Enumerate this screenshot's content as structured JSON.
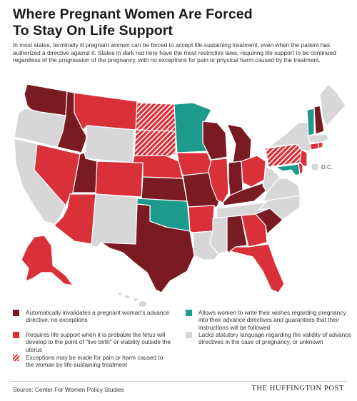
{
  "title_line1": "Where Pregnant Women Are Forced",
  "title_line2": "To Stay On Life Support",
  "intro": "In most states, terminally ill pregnant women can be forced to accept life-sustaining treatment, even when the patient has authorized a directive against it. States in dark red here have the most restrictive laws, requiring life support to be continued regardless of the progression of the pregnancy, with no exceptions for pain or physical harm caused by the treatment.",
  "dc_label": "D.C.",
  "colors": {
    "dark_red": "#7a1a22",
    "red": "#d9303a",
    "teal": "#1c9a8c",
    "gray": "#d7d7d7"
  },
  "legend": {
    "dark_red": "Automatically invalidates a pregnant woman's advance directive, no exceptions",
    "red": "Requires life support when it is probable the fetus will develop to the point of \"live birth\" or viability outside the uterus",
    "hatched": "Exceptions may be made for pain or harm caused to the woman by life-sustaining treatment",
    "teal": "Allows women to write their wishes regarding pregnancy into their advance directives and guarantees that their instructions will be followed",
    "gray": "Lacks statutory language regarding the validity of advance directives in the case of pregnancy, or unknown"
  },
  "states": {
    "dark_red": [
      "Washington",
      "Idaho",
      "Utah",
      "Kansas",
      "Missouri",
      "Texas",
      "Wisconsin",
      "Michigan",
      "Indiana",
      "Kentucky",
      "Alabama",
      "South Carolina",
      "New Hampshire"
    ],
    "red": [
      "Alaska",
      "Nevada",
      "Arizona",
      "Montana",
      "Colorado",
      "Nebraska",
      "Iowa",
      "Illinois",
      "Arkansas",
      "Ohio",
      "Georgia",
      "Florida",
      "Connecticut",
      "Rhode Island",
      "New Jersey",
      "Delaware"
    ],
    "hatched": [
      "North Dakota",
      "South Dakota",
      "Pennsylvania"
    ],
    "teal": [
      "Minnesota",
      "Oklahoma",
      "Vermont",
      "Maryland"
    ],
    "gray": [
      "Oregon",
      "California",
      "Wyoming",
      "New Mexico",
      "Louisiana",
      "Mississippi",
      "Tennessee",
      "West Virginia",
      "Virginia",
      "North Carolina",
      "New York",
      "Maine",
      "Massachusetts",
      "Hawaii",
      "D.C."
    ]
  },
  "source": "Source: Center For Women Policy Studies",
  "brand": "THE HUFFINGTON POST"
}
